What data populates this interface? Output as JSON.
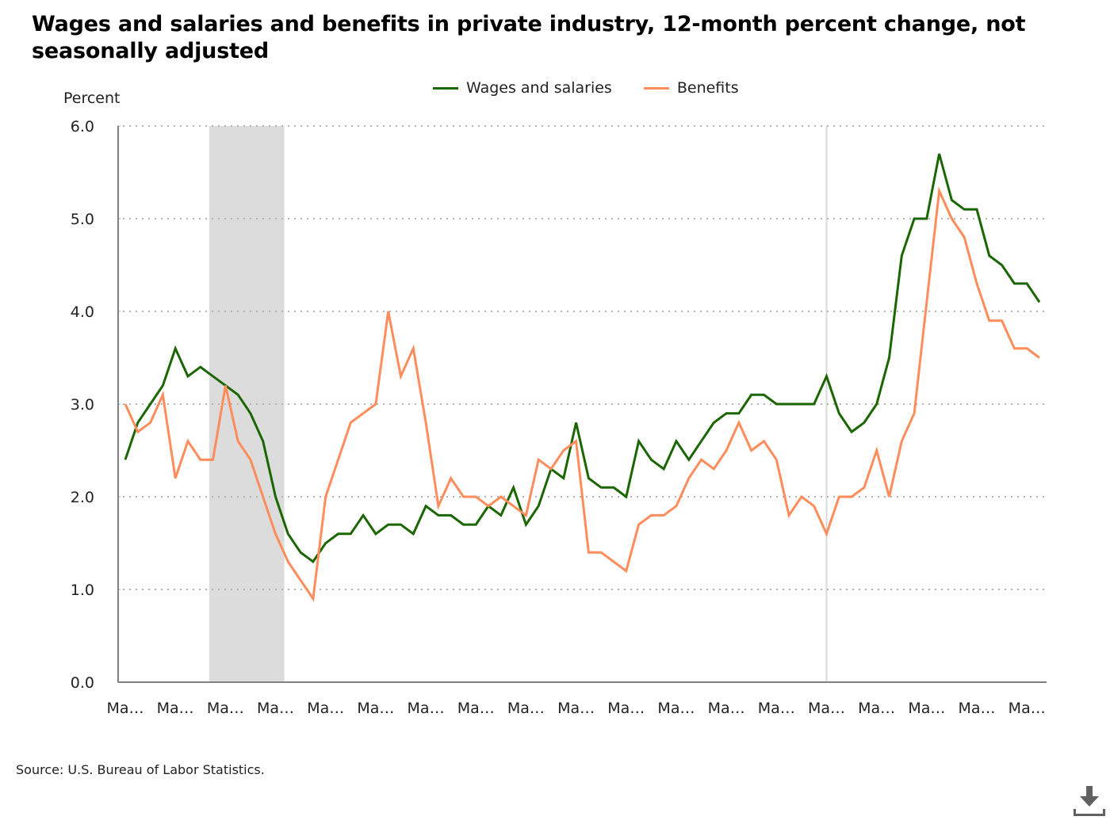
{
  "title": "Wages and salaries and benefits in private industry, 12-month percent change, not seasonally adjusted",
  "source": "Source: U.S. Bureau of Labor Statistics.",
  "download_icon": "download-icon",
  "colors": {
    "wages": "#1a6600",
    "benefits": "#ff8c5a",
    "recession": "#dcdcdc",
    "grid": "#b3b3b3",
    "axis": "#808080",
    "marker_line": "#d9d9d9"
  },
  "chart_data": {
    "type": "line",
    "title": "Wages and salaries and benefits in private industry, 12-month percent change, not seasonally adjusted",
    "xlabel": "",
    "ylabel": "Percent",
    "ylim": [
      0,
      6
    ],
    "yticks": [
      "0.0",
      "1.0",
      "2.0",
      "3.0",
      "4.0",
      "5.0",
      "6.0"
    ],
    "grid": true,
    "legend_position": "top-center",
    "xtick_labels": [
      "Ma…",
      "Ma…",
      "Ma…",
      "Ma…",
      "Ma…",
      "Ma…",
      "Ma…",
      "Ma…",
      "Ma…",
      "Ma…",
      "Ma…",
      "Ma…",
      "Ma…",
      "Ma…",
      "Ma…",
      "Ma…",
      "Ma…",
      "Ma…",
      "Ma…"
    ],
    "xtick_every": 4,
    "num_points": 74,
    "recession_shading": {
      "start_index": 6.7,
      "end_index": 12.7
    },
    "reference_line_index": 56,
    "series": [
      {
        "name": "Wages and salaries",
        "color": "#1a6600",
        "values": [
          2.4,
          2.8,
          3.0,
          3.2,
          3.6,
          3.3,
          3.4,
          3.3,
          3.2,
          3.1,
          2.9,
          2.6,
          2.0,
          1.6,
          1.4,
          1.3,
          1.5,
          1.6,
          1.6,
          1.8,
          1.6,
          1.7,
          1.7,
          1.6,
          1.9,
          1.8,
          1.8,
          1.7,
          1.7,
          1.9,
          1.8,
          2.1,
          1.7,
          1.9,
          2.3,
          2.2,
          2.8,
          2.2,
          2.1,
          2.1,
          2.0,
          2.6,
          2.4,
          2.3,
          2.6,
          2.4,
          2.6,
          2.8,
          2.9,
          2.9,
          3.1,
          3.1,
          3.0,
          3.0,
          3.0,
          3.0,
          3.3,
          2.9,
          2.7,
          2.8,
          3.0,
          3.5,
          4.6,
          5.0,
          5.0,
          5.7,
          5.2,
          5.1,
          5.1,
          4.6,
          4.5,
          4.3,
          4.3,
          4.1
        ]
      },
      {
        "name": "Benefits",
        "color": "#ff8c5a",
        "values": [
          3.0,
          2.7,
          2.8,
          3.1,
          2.2,
          2.6,
          2.4,
          2.4,
          3.2,
          2.6,
          2.4,
          2.0,
          1.6,
          1.3,
          1.1,
          0.9,
          2.0,
          2.4,
          2.8,
          2.9,
          3.0,
          4.0,
          3.3,
          3.6,
          2.8,
          1.9,
          2.2,
          2.0,
          2.0,
          1.9,
          2.0,
          1.9,
          1.8,
          2.4,
          2.3,
          2.5,
          2.6,
          1.4,
          1.4,
          1.3,
          1.2,
          1.7,
          1.8,
          1.8,
          1.9,
          2.2,
          2.4,
          2.3,
          2.5,
          2.8,
          2.5,
          2.6,
          2.4,
          1.8,
          2.0,
          1.9,
          1.6,
          2.0,
          2.0,
          2.1,
          2.5,
          2.0,
          2.6,
          2.9,
          4.1,
          5.3,
          5.0,
          4.8,
          4.3,
          3.9,
          3.9,
          3.6,
          3.6,
          3.5
        ]
      }
    ]
  }
}
